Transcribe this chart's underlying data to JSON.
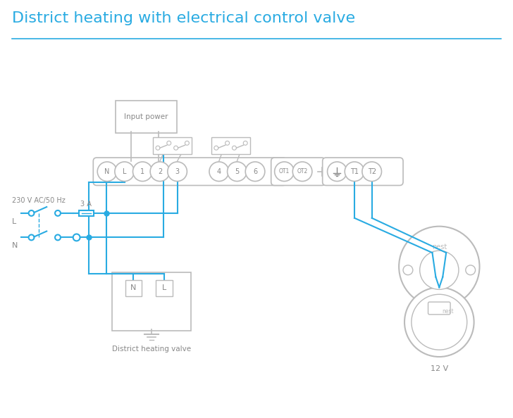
{
  "title": "District heating with electrical control valve",
  "title_color": "#29abe2",
  "title_fontsize": 16,
  "bg_color": "#ffffff",
  "cyan": "#29abe2",
  "lgray": "#bbbbbb",
  "dgray": "#888888",
  "mgray": "#aaaaaa",
  "terminal_labels": [
    "N",
    "L",
    "1",
    "2",
    "3",
    "4",
    "5",
    "6"
  ],
  "ot_labels": [
    "OT1",
    "OT2"
  ],
  "right_labels": [
    "T1",
    "T2"
  ],
  "label_230v": "230 V AC/50 Hz",
  "label_L": "L",
  "label_N": "N",
  "label_3A": "3 A",
  "label_input_power": "Input power",
  "label_district_valve": "District heating valve",
  "label_12v": "12 V",
  "label_nest": "nest"
}
